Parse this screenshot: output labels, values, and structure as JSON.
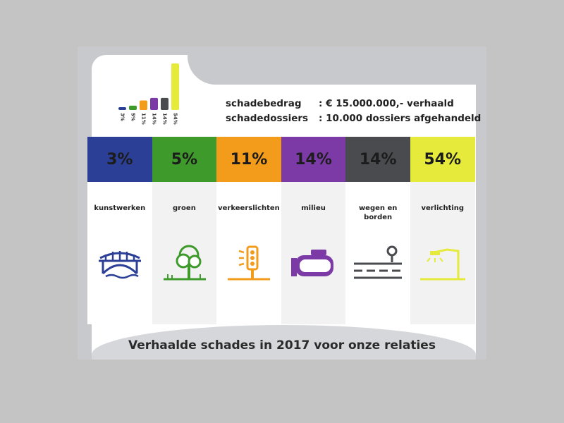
{
  "summary": {
    "amount_label": "schadebedrag",
    "amount_value": ":  € 15.000.000,- verhaald",
    "dossiers_label": "schadedossiers",
    "dossiers_value": ":  10.000 dossiers afgehandeld"
  },
  "footer": {
    "title": "Verhaalde schades in 2017 voor onze relaties"
  },
  "categories": [
    {
      "percent": "3%",
      "label": "kunstwerken",
      "color": "#2b3f96",
      "text_color": "#1c1c1c",
      "icon": "bridge-icon"
    },
    {
      "percent": "5%",
      "label": "groen",
      "color": "#3f9a2c",
      "text_color": "#1c1c1c",
      "icon": "tree-icon"
    },
    {
      "percent": "11%",
      "label": "verkeerslichten",
      "color": "#f39b1a",
      "text_color": "#1c1c1c",
      "icon": "traffic-light-icon"
    },
    {
      "percent": "14%",
      "label": "milieu",
      "color": "#7c3aa6",
      "text_color": "#1c1c1c",
      "icon": "tank-icon"
    },
    {
      "percent": "14%",
      "label": "wegen en borden",
      "color": "#4a4b4f",
      "text_color": "#1c1c1c",
      "icon": "road-sign-icon"
    },
    {
      "percent": "54%",
      "label": "verlichting",
      "color": "#e6ea3a",
      "text_color": "#1c1c1c",
      "icon": "street-lamp-icon"
    }
  ],
  "chart_data": {
    "type": "bar",
    "categories": [
      "kunstwerken",
      "groen",
      "verkeerslichten",
      "milieu",
      "wegen en borden",
      "verlichting"
    ],
    "values": [
      3,
      5,
      11,
      14,
      14,
      54
    ],
    "data_labels": [
      "3%",
      "5%",
      "11%",
      "14%",
      "14%",
      "54%"
    ],
    "colors": [
      "#2b3f96",
      "#3f9a2c",
      "#f39b1a",
      "#7c3aa6",
      "#4a4b4f",
      "#e6ea3a"
    ],
    "ylim": [
      0,
      54
    ]
  }
}
